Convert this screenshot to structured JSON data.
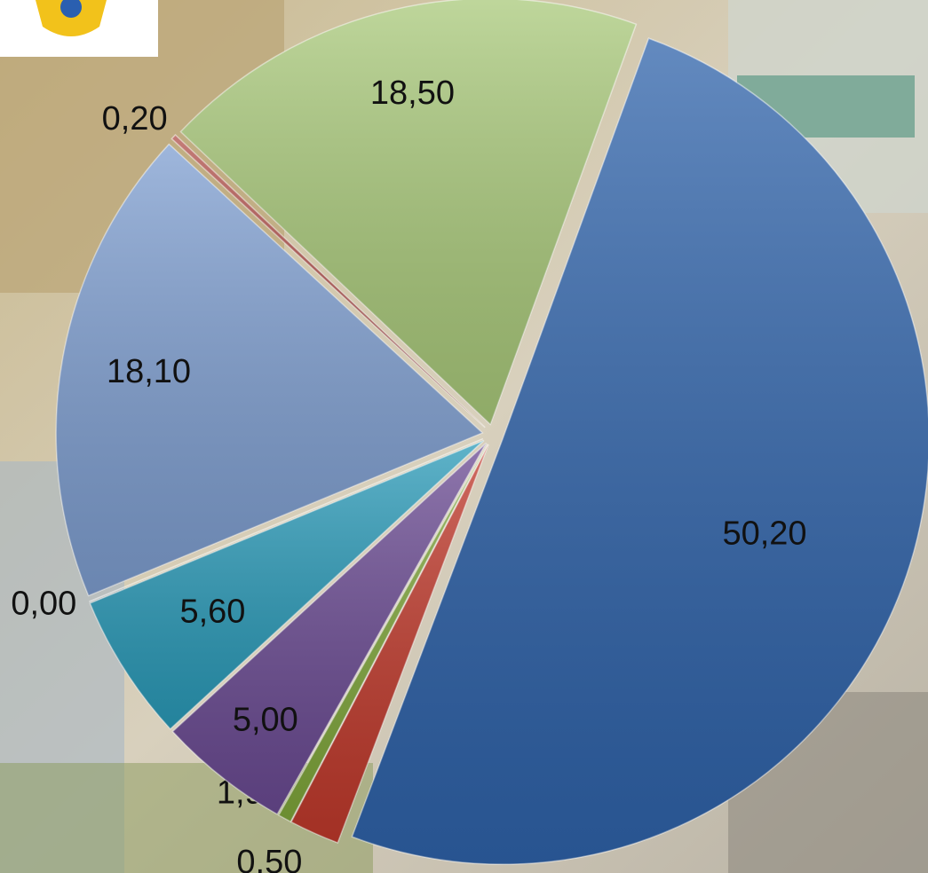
{
  "chart_data": {
    "type": "pie",
    "categories": [
      null,
      null,
      null,
      null,
      null,
      null,
      null,
      null,
      null
    ],
    "values": [
      50.2,
      1.9,
      0.5,
      5.0,
      5.6,
      0.0,
      18.1,
      0.2,
      18.5
    ],
    "value_labels": [
      "50,20",
      "1,90",
      "0,50",
      "5,00",
      "5,60",
      "0,00",
      "18,10",
      "0,20",
      "18,50"
    ],
    "colors": [
      "#2f63aa",
      "#c0392b",
      "#7fa63a",
      "#6a4a92",
      "#2a9ab8",
      "#2a9ab8",
      "#7e9ed0",
      "#b0504a",
      "#a9c97a"
    ]
  }
}
